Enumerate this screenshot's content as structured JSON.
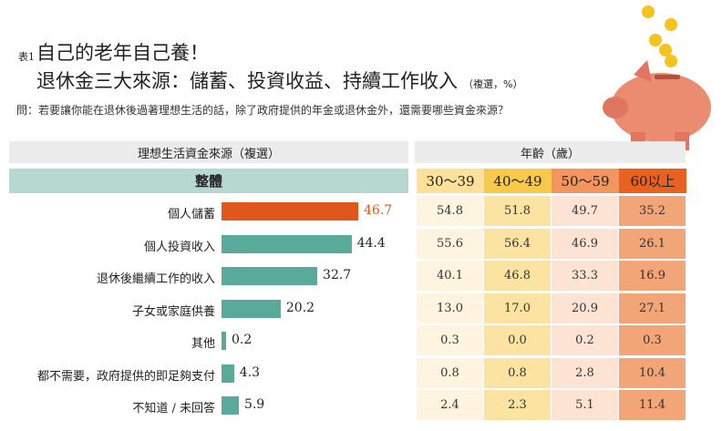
{
  "header": {
    "tag": "表1",
    "title": "自己的老年自己養！",
    "subtitle": "退休金三大來源：儲蓄、投資收益、持續工作收入",
    "unit": "（複選，%）",
    "question": "問：若要讓你能在退休後過著理想生活的話，除了政府提供的年金或退休金外，還需要哪些資金來源？"
  },
  "chart_data": [
    {
      "type": "bar",
      "title": "理想生活資金來源（複選）",
      "group_label": "整體",
      "categories": [
        "個人儲蓄",
        "個人投資收入",
        "退休後繼續工作的收入",
        "子女或家庭供養",
        "其他",
        "都不需要，政府提供的即足夠支付",
        "不知道 / 未回答"
      ],
      "values": [
        46.7,
        44.4,
        32.7,
        20.2,
        0.2,
        4.3,
        5.9
      ],
      "xlim": [
        0,
        50
      ],
      "colors": {
        "highlight": "#e1561a",
        "default": "#5aaa9b"
      }
    },
    {
      "type": "table",
      "title": "年齡（歲）",
      "columns": [
        "30～39",
        "40～49",
        "50～59",
        "60以上"
      ],
      "rows": [
        [
          54.8,
          51.8,
          49.7,
          35.2
        ],
        [
          55.6,
          56.4,
          46.9,
          26.1
        ],
        [
          40.1,
          46.8,
          33.3,
          16.9
        ],
        [
          13.0,
          17.0,
          20.9,
          27.1
        ],
        [
          0.3,
          0.0,
          0.2,
          0.3
        ],
        [
          0.8,
          0.8,
          2.8,
          10.4
        ],
        [
          2.4,
          2.3,
          5.1,
          11.4
        ]
      ],
      "header_colors": [
        "#fde09a",
        "#f9c94c",
        "#f2955f",
        "#e8611f"
      ],
      "cell_colors": [
        "#fff4df",
        "#fde3a2",
        "#fde3d4",
        "#f2a577"
      ]
    }
  ]
}
